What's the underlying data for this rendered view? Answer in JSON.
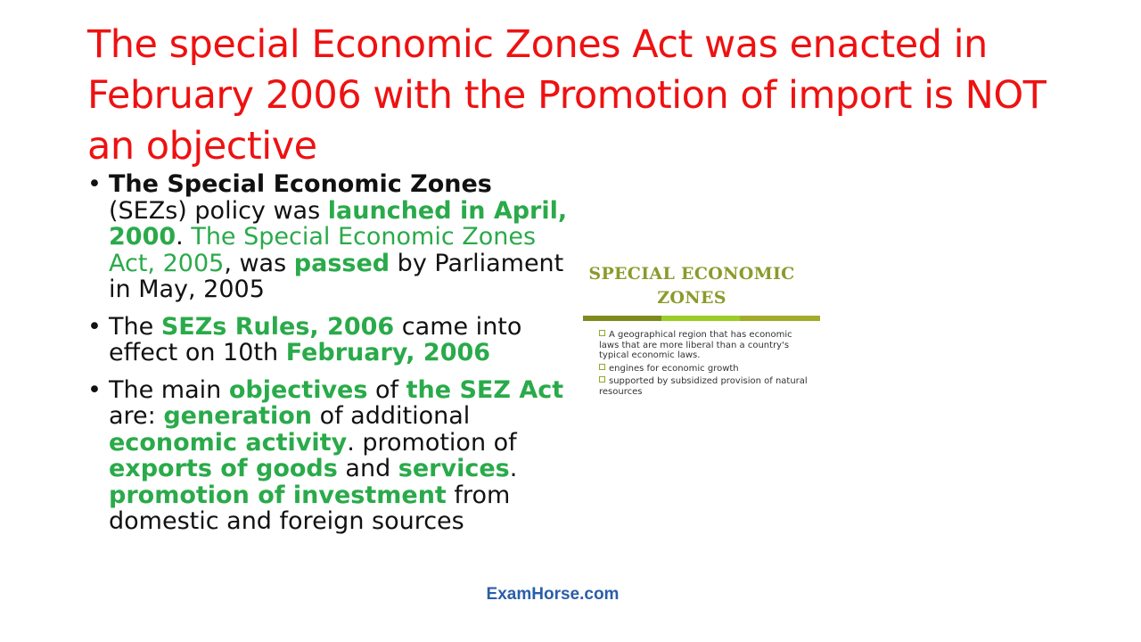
{
  "slide": {
    "title": "The special Economic Zones Act was enacted in February 2006 with the Promotion of import is NOT an objective",
    "bullets": {
      "b1": {
        "t1": "The Special Economic Zones",
        "t2": " (SEZs) policy was ",
        "t3": "launched in April, 2000",
        "t4": ". ",
        "t5": "The Special Economic Zones Act, 2005",
        "t6": ", was ",
        "t7": "passed",
        "t8": " by Parliament in May, 2005"
      },
      "b2": {
        "t1": "The ",
        "t2": "SEZs Rules, 2006",
        "t3": " came into effect on 10th ",
        "t4": "February, 2006"
      },
      "b3": {
        "t1": "The main ",
        "t2": "objectives",
        "t3": " of ",
        "t4": "the SEZ Act",
        "t5": " are: ",
        "t6": "generation",
        "t7": " of additional ",
        "t8": "economic activity",
        "t9": ". promotion of ",
        "t10": "exports of goods",
        "t11": " and ",
        "t12": "services",
        "t13": ". ",
        "t14": "promotion of investment",
        "t15": " from domestic and foreign sources"
      }
    }
  },
  "sez_image": {
    "title_line1": "SPECIAL ECONOMIC",
    "title_line2": "ZONES",
    "items": [
      "A geographical region that has economic laws that are more liberal than a country's typical economic laws.",
      "engines for economic growth",
      "supported by subsidized provision of natural resources"
    ],
    "colors": {
      "title": "#8c9a2c",
      "bar_dark": "#7f8a1e",
      "bar_light": "#9acd28",
      "bar_olive": "#a2ac2a"
    }
  },
  "footer": {
    "site": "ExamHorse.com"
  },
  "colors": {
    "title": "#ee1111",
    "highlight": "#2aaa4a",
    "text": "#111111",
    "footer": "#2a5ea8"
  }
}
